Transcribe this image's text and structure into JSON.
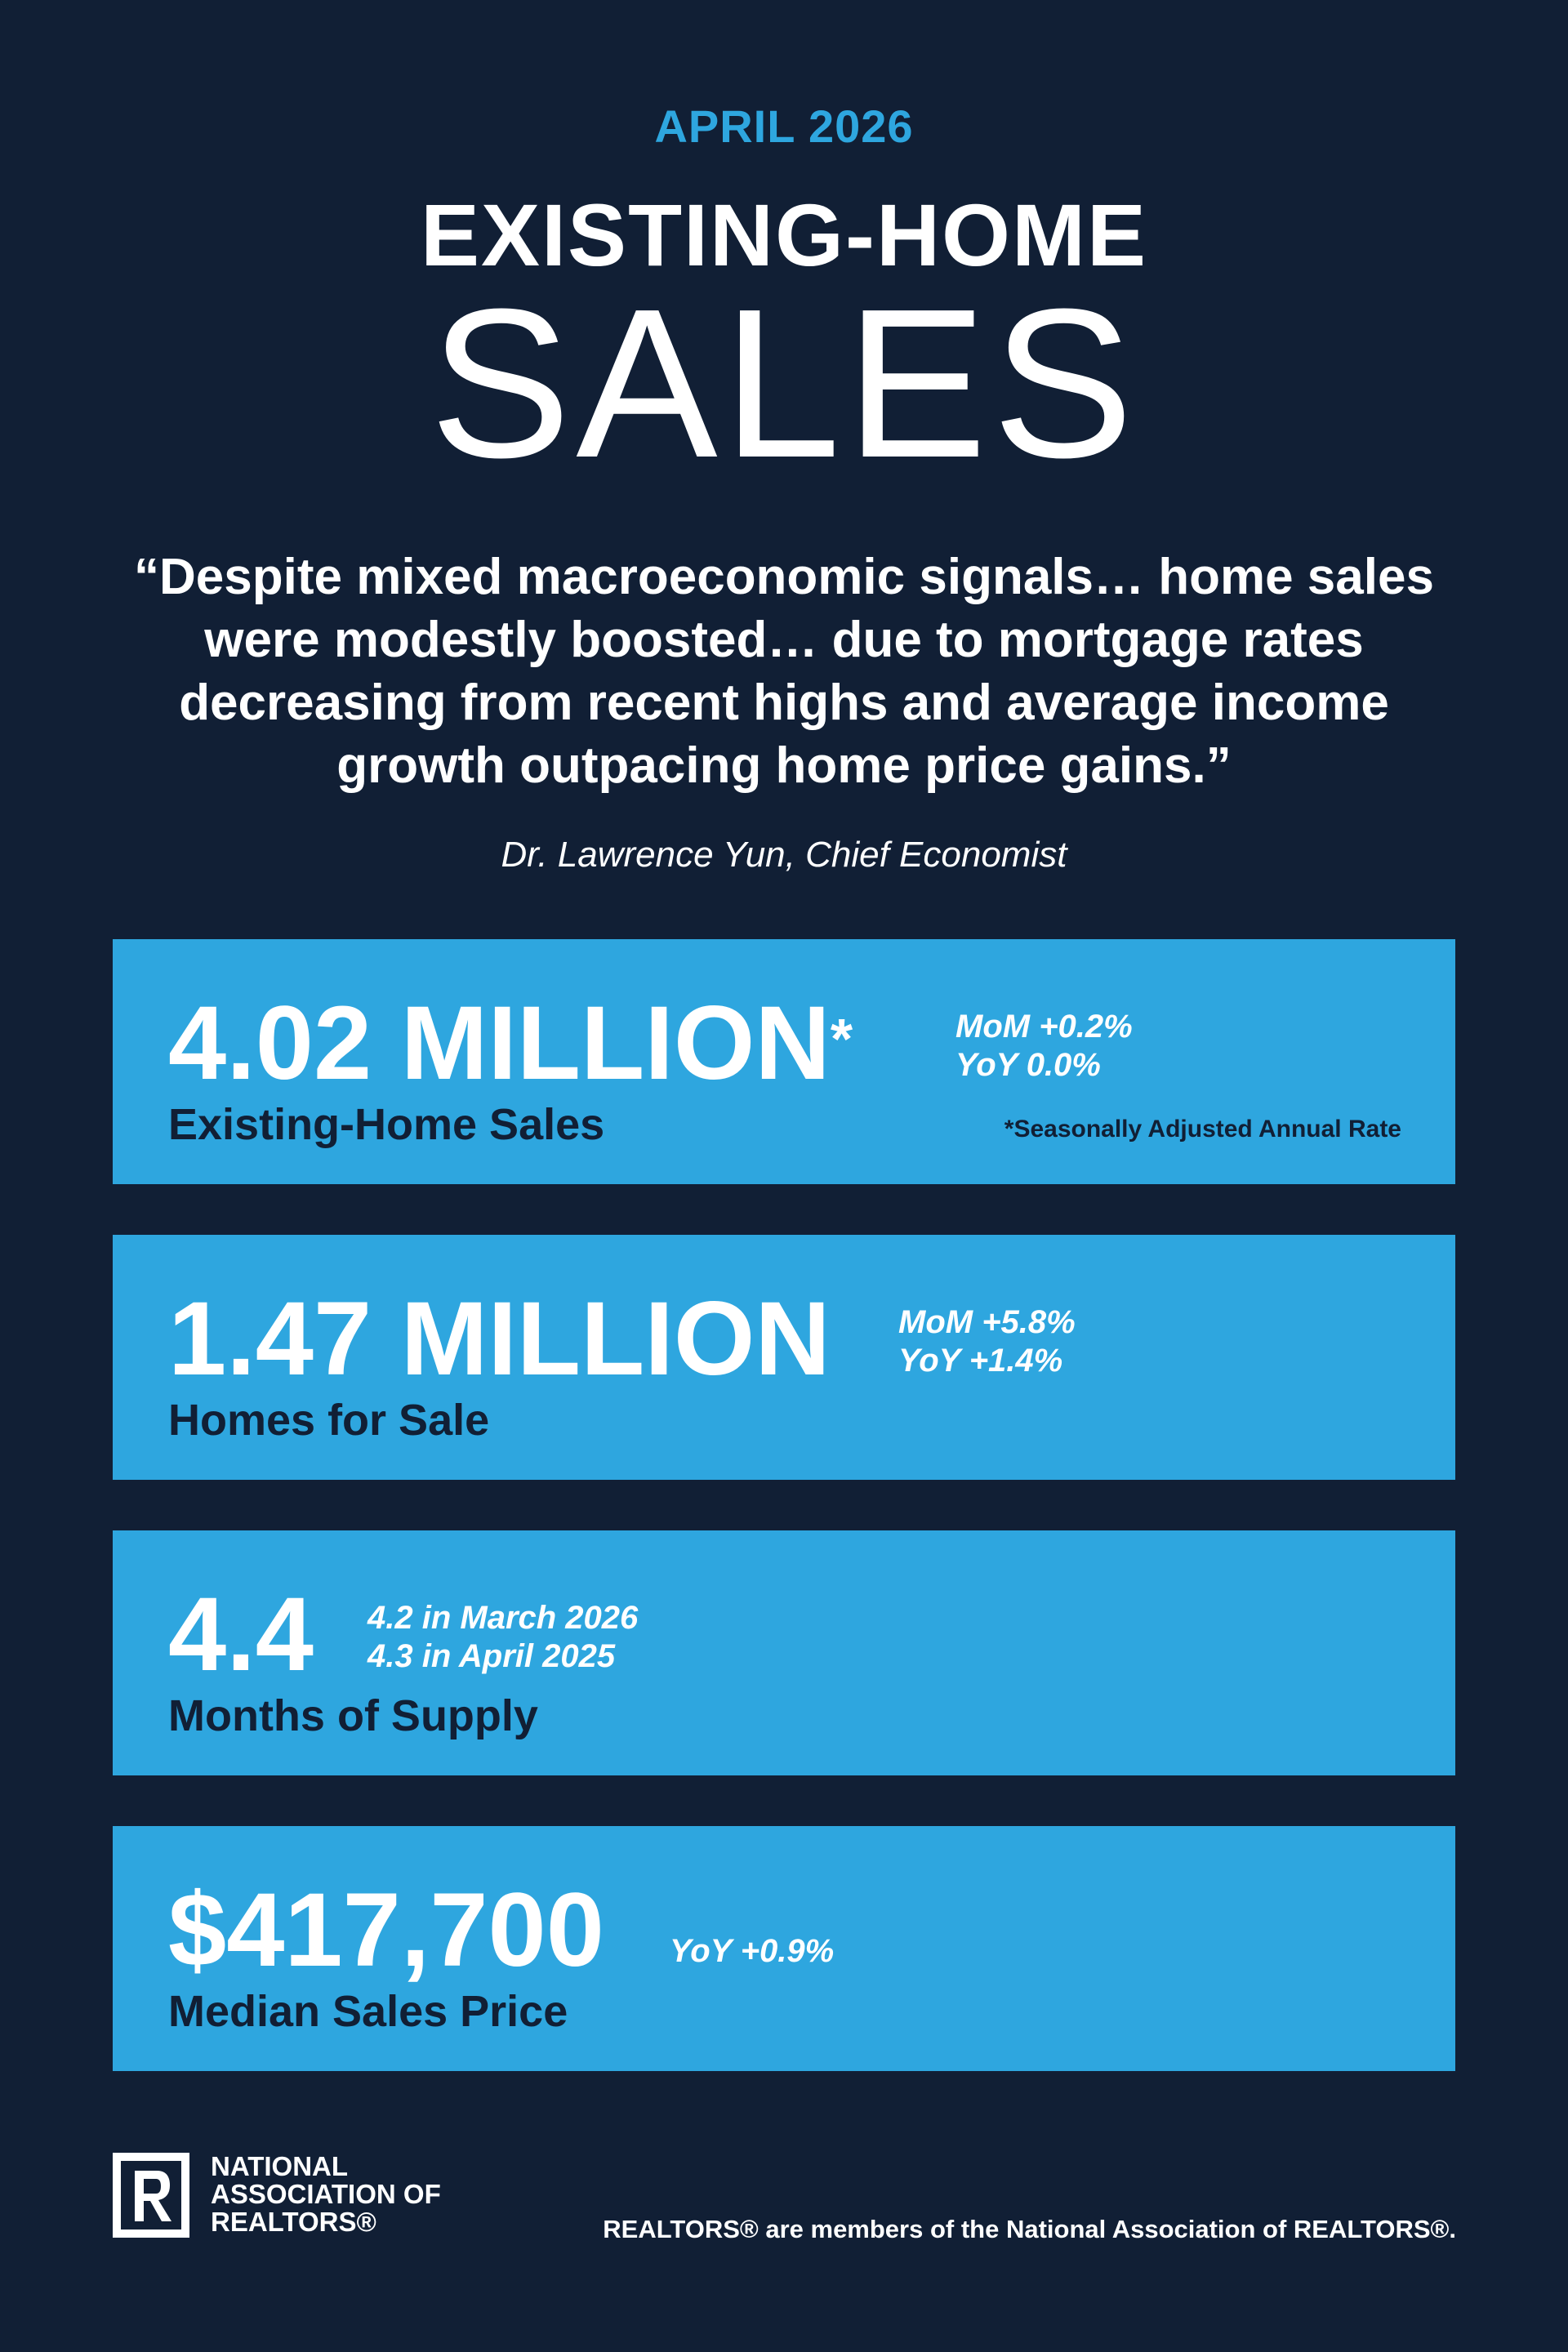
{
  "header": {
    "date": "APRIL 2026",
    "title_line1": "EXISTING-HOME",
    "title_line2": "SALES"
  },
  "quote": {
    "text": "“Despite mixed macroeconomic signals… home sales were modestly boosted… due to mortgage rates decreasing from recent highs and average income growth outpacing home price gains.”",
    "attribution": "Dr. Lawrence Yun, Chief Economist"
  },
  "cards": [
    {
      "value": "4.02 MILLION",
      "value_mark": "*",
      "label": "Existing-Home Sales",
      "stat_line1": "MoM +0.2%",
      "stat_line2": "YoY 0.0%",
      "note": "*Seasonally Adjusted Annual Rate"
    },
    {
      "value": "1.47 MILLION",
      "label": "Homes for Sale",
      "stat_line1": "MoM +5.8%",
      "stat_line2": "YoY +1.4%"
    },
    {
      "value": "4.4",
      "label": "Months of Supply",
      "stat_line1": "4.2 in March 2026",
      "stat_line2": "4.3 in April 2025"
    },
    {
      "value": "$417,700",
      "label": "Median Sales Price",
      "stat_line1": "YoY +0.9%"
    }
  ],
  "footer": {
    "logo_icon": "realtor-r-logo-icon",
    "org_line1": "NATIONAL",
    "org_line2": "ASSOCIATION OF",
    "org_line3": "REALTORS®",
    "disclaimer": "REALTORS® are members of the National Association of REALTORS®."
  },
  "colors": {
    "background": "#111f35",
    "accent": "#2ea6df",
    "text": "#ffffff"
  }
}
